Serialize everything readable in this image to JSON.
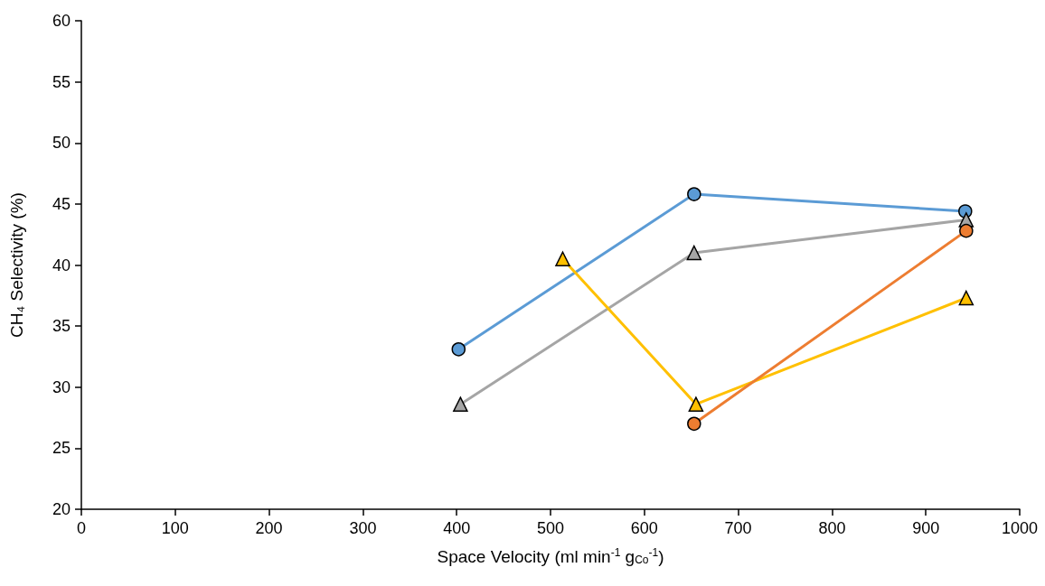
{
  "chart_data": {
    "type": "line",
    "xlabel": "Space Velocity (ml min$^{-1}$ g$_{Co}$$^{-1}$)",
    "ylabel": "CH₄ Selectivity (%)",
    "xlim": [
      0,
      1000
    ],
    "xticks": [
      0,
      100,
      200,
      300,
      400,
      500,
      600,
      700,
      800,
      900,
      1000
    ],
    "ylim": [
      20,
      60
    ],
    "yticks": [
      20,
      25,
      30,
      35,
      40,
      45,
      50,
      55,
      60
    ],
    "grid": false,
    "series": [
      {
        "color": "#5b9bd5",
        "marker": "circle",
        "x": [
          402,
          653,
          942
        ],
        "values": [
          33.1,
          45.8,
          44.4
        ]
      },
      {
        "color": "#a5a5a5",
        "marker": "triangle",
        "x": [
          404,
          653,
          943
        ],
        "values": [
          28.6,
          41.0,
          43.7
        ]
      },
      {
        "color": "#ffc000",
        "marker": "triangle",
        "x": [
          513,
          655,
          943
        ],
        "values": [
          40.5,
          28.6,
          37.3
        ]
      },
      {
        "color": "#ed7d31",
        "marker": "circle",
        "x": [
          653,
          943
        ],
        "values": [
          27.0,
          42.8
        ]
      }
    ]
  }
}
